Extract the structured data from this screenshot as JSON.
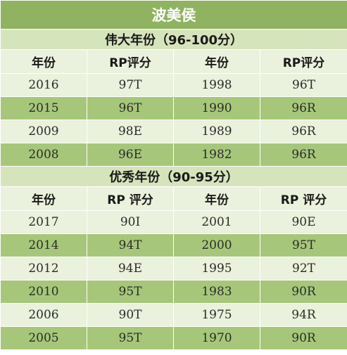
{
  "title": "波美侯",
  "sections": [
    {
      "heading": "伟大年份（96-100分）",
      "columns": [
        "年份",
        "RP评分",
        "年份",
        "RP评分"
      ],
      "rows": [
        [
          "2016",
          "97T",
          "1998",
          "96T"
        ],
        [
          "2015",
          "96T",
          "1990",
          "96R"
        ],
        [
          "2009",
          "98E",
          "1989",
          "96R"
        ],
        [
          "2008",
          "96E",
          "1982",
          "96R"
        ]
      ]
    },
    {
      "heading": "优秀年份（90-95分）",
      "columns": [
        "年份",
        "RP 评分",
        "年份",
        "RP 评分"
      ],
      "rows": [
        [
          "2017",
          "90I",
          "2001",
          "90E"
        ],
        [
          "2014",
          "94T",
          "2000",
          "95T"
        ],
        [
          "2012",
          "94E",
          "1995",
          "92T"
        ],
        [
          "2010",
          "95T",
          "1983",
          "90R"
        ],
        [
          "2006",
          "90T",
          "1975",
          "94R"
        ],
        [
          "2005",
          "95T",
          "1970",
          "90R"
        ]
      ]
    }
  ],
  "colors": {
    "title_bg": "#8fb360",
    "section_bg": "#d6e4bc",
    "header_bg": "#eaf1dc",
    "row_dark": "#a6c77a",
    "row_light": "#eaf1dc"
  }
}
